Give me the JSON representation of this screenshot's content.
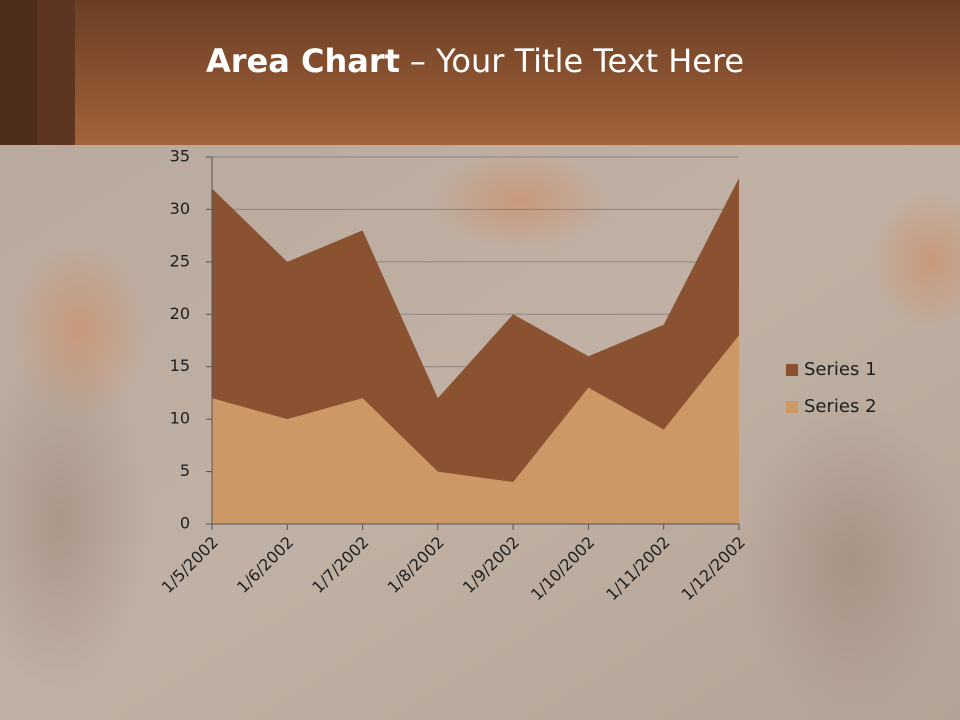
{
  "chart_data": {
    "type": "area",
    "title": [
      "Area Chart",
      "– Your Title Text Here"
    ],
    "categories": [
      "1/5/2002",
      "1/6/2002",
      "1/7/2002",
      "1/8/2002",
      "1/9/2002",
      "1/10/2002",
      "1/11/2002",
      "1/12/2002"
    ],
    "series": [
      {
        "name": "Series 1",
        "color": "#8a5230",
        "values": [
          32,
          25,
          28,
          12,
          20,
          16,
          19,
          33
        ]
      },
      {
        "name": "Series 2",
        "color": "#cc9966",
        "values": [
          12,
          10,
          12,
          5,
          4,
          13,
          9,
          18
        ]
      }
    ],
    "ylim": [
      0,
      35
    ],
    "yticks": [
      0,
      5,
      10,
      15,
      20,
      25,
      30,
      35
    ],
    "grid": true,
    "legend": "right"
  }
}
